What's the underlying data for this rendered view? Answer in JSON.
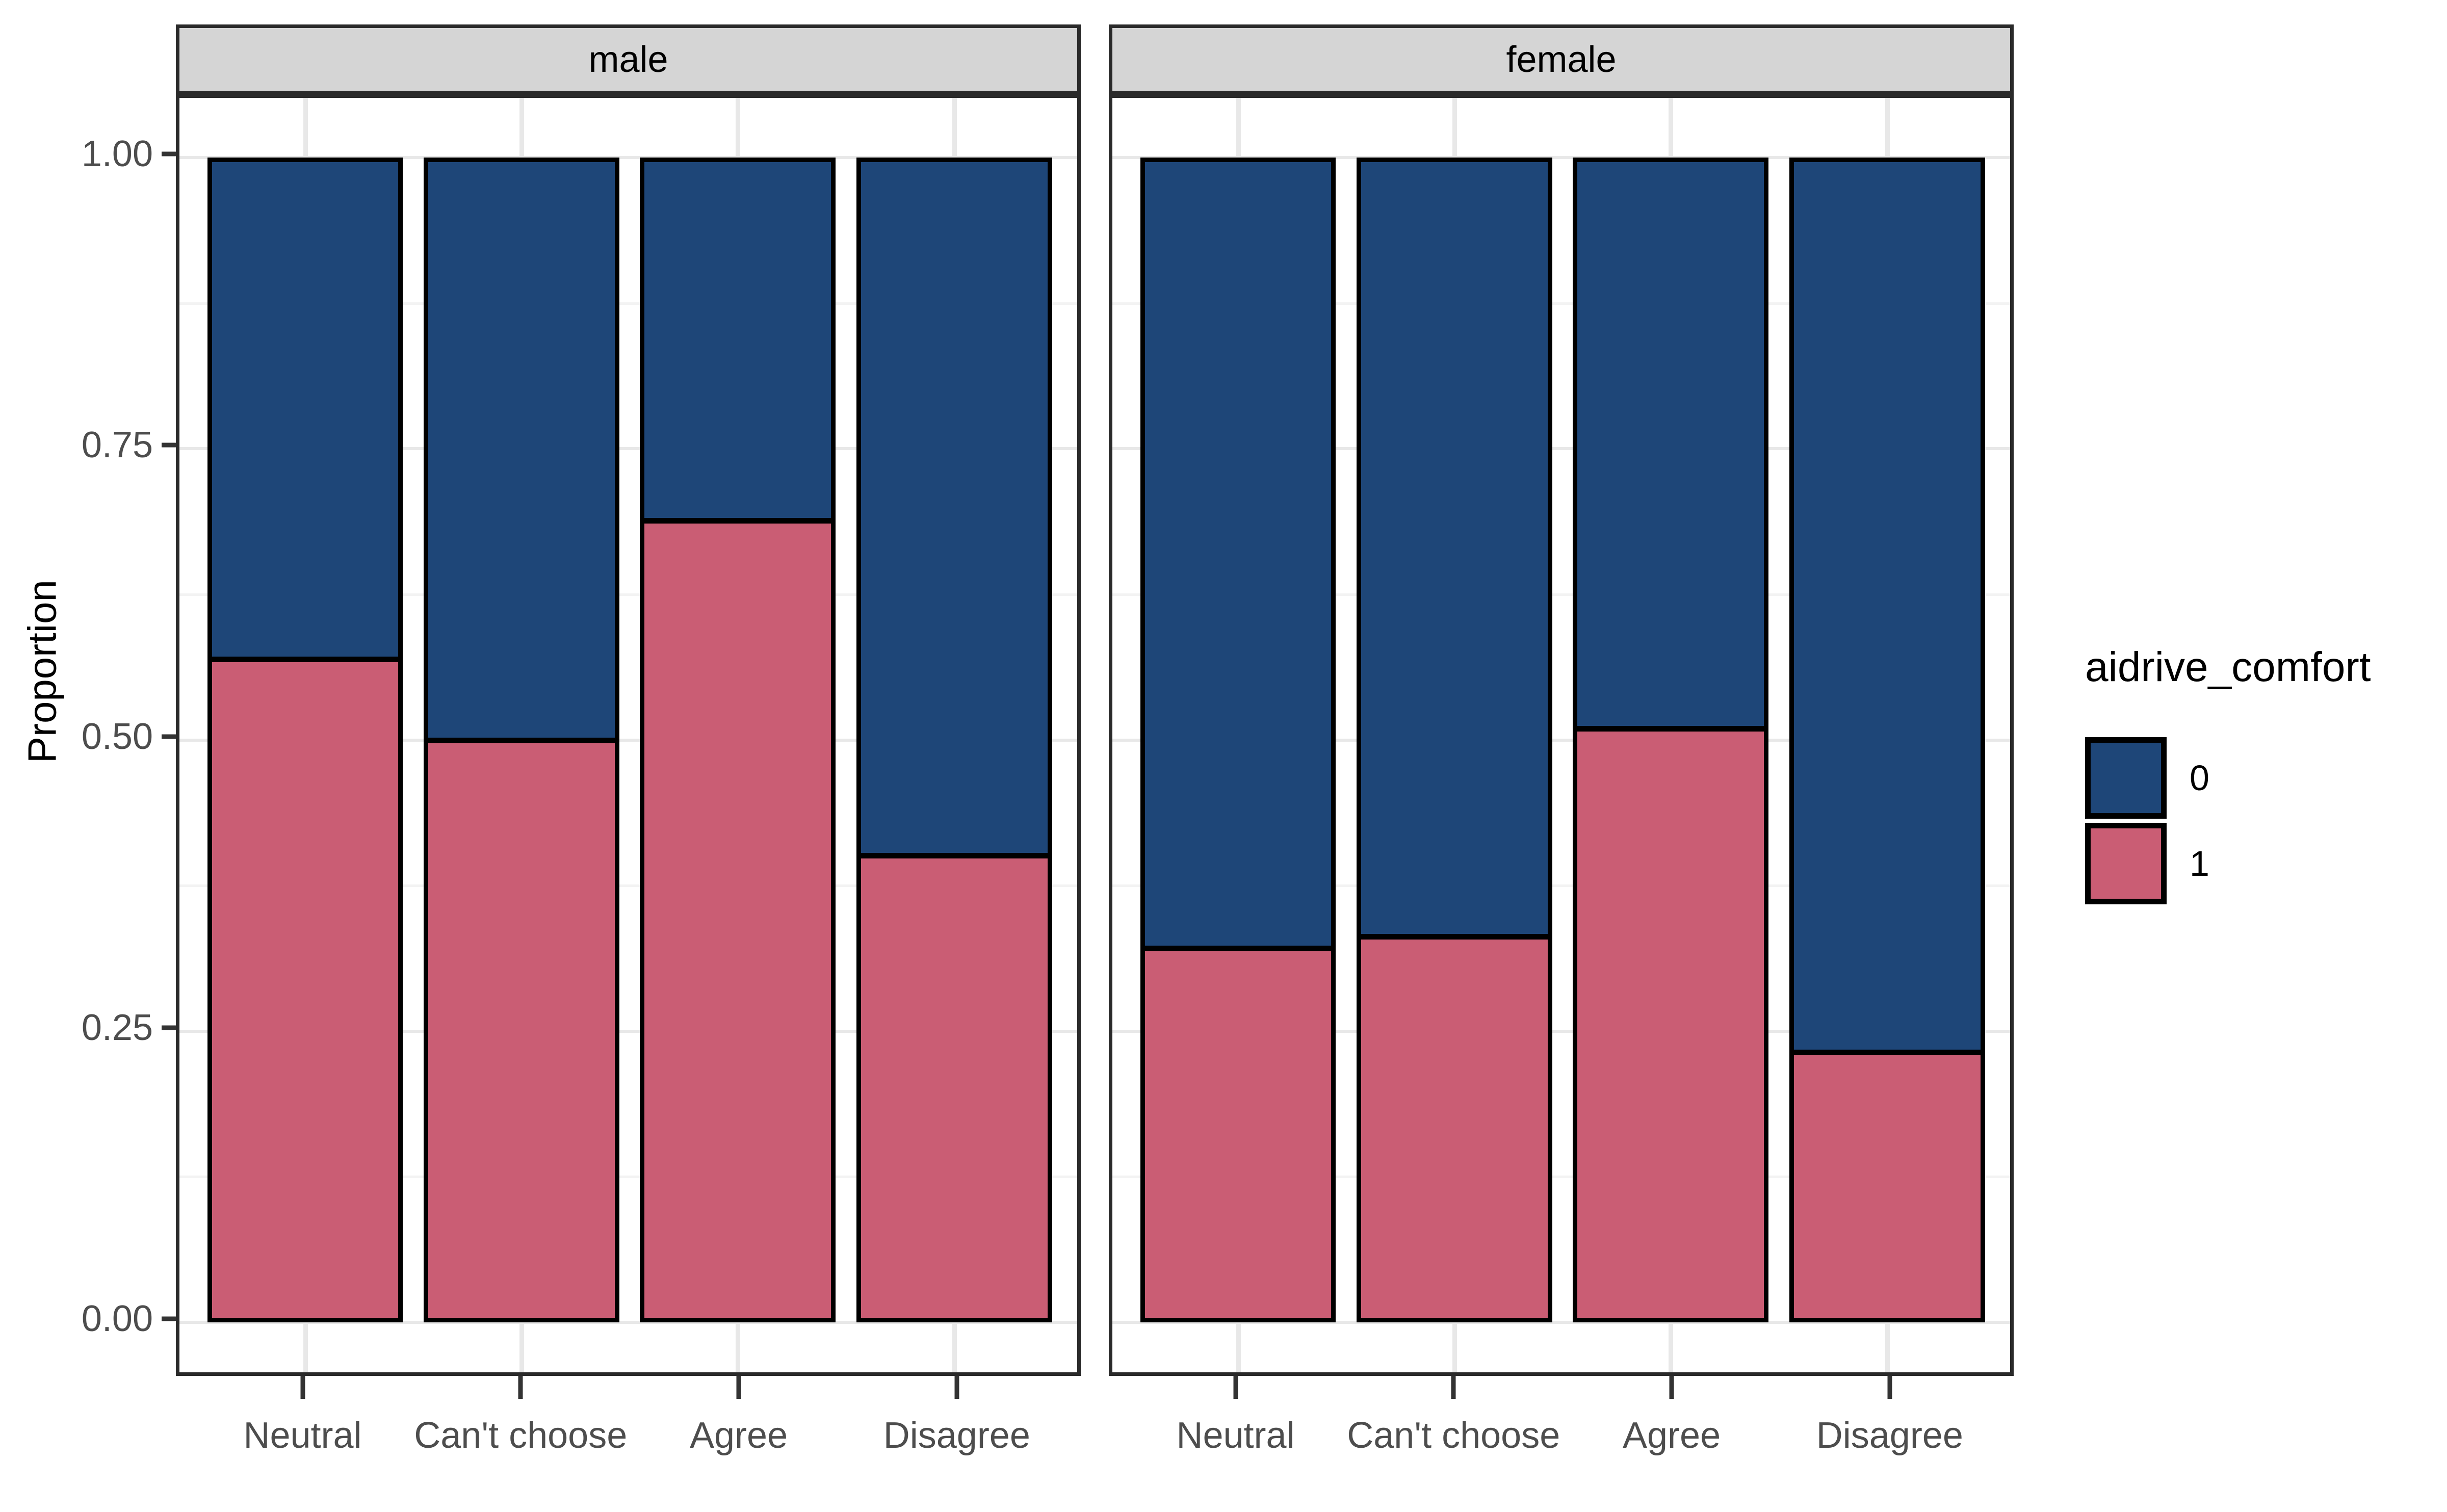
{
  "chart_data": {
    "type": "bar",
    "variant": "stacked_proportion_faceted",
    "title": "",
    "ylabel": "Proportion",
    "xlabel": "",
    "ylim": [
      0,
      1
    ],
    "grid": true,
    "legend_position": "right",
    "y_major_ticks": [
      {
        "value": 1.0,
        "label": "1.00"
      },
      {
        "value": 0.75,
        "label": "0.75"
      },
      {
        "value": 0.5,
        "label": "0.50"
      },
      {
        "value": 0.25,
        "label": "0.25"
      },
      {
        "value": 0.0,
        "label": "0.00"
      }
    ],
    "y_minor_ticks": [
      0.875,
      0.625,
      0.375,
      0.125
    ],
    "categories": [
      "Neutral",
      "Can't choose",
      "Agree",
      "Disagree"
    ],
    "stack_order_bottom_to_top": [
      "1",
      "0"
    ],
    "facets": [
      {
        "label": "male",
        "series": [
          {
            "name": "1",
            "values": [
              0.57,
              0.5,
              0.69,
              0.4
            ]
          },
          {
            "name": "0",
            "values": [
              0.43,
              0.5,
              0.31,
              0.6
            ]
          }
        ]
      },
      {
        "label": "female",
        "series": [
          {
            "name": "1",
            "values": [
              0.32,
              0.33,
              0.51,
              0.23
            ]
          },
          {
            "name": "0",
            "values": [
              0.68,
              0.67,
              0.49,
              0.77
            ]
          }
        ]
      }
    ],
    "legend": {
      "title": "aidrive_comfort",
      "entries": [
        {
          "label": "0",
          "color": "#1E4678"
        },
        {
          "label": "1",
          "color": "#CA5D74"
        }
      ]
    },
    "colors": {
      "0": "#1E4678",
      "1": "#CA5D74"
    },
    "style": {
      "background": "#FFFFFF",
      "strip_fill": "#D5D5D5",
      "panel_border": "#2A2A2A",
      "grid_major": "#E8E8E8",
      "grid_minor": "#F3F3F3",
      "axis_text_color": "#4D4D4D",
      "tick_color": "#333333",
      "bar_stroke": "#000000"
    }
  }
}
